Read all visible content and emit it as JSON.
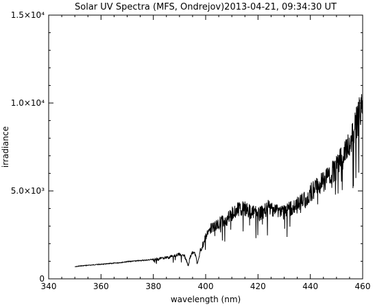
{
  "chart_data": {
    "type": "line",
    "title": "Solar UV Spectra (MFS, Ondrejov)2013-04-21, 09:34:30 UT",
    "xlabel": "wavelength (nm)",
    "ylabel": "irradiance",
    "xlim": [
      340,
      460
    ],
    "ylim": [
      0,
      15000
    ],
    "x_ticks": [
      340,
      360,
      380,
      400,
      420,
      440,
      460
    ],
    "x_tick_labels": [
      "340",
      "360",
      "380",
      "400",
      "420",
      "440",
      "460"
    ],
    "y_ticks": [
      0,
      5000,
      10000,
      15000
    ],
    "y_tick_labels": [
      "0",
      "5.0×10³",
      "1.0×10⁴",
      "1.5×10⁴"
    ],
    "grid": false,
    "series": [
      {
        "x": [
          350,
          352,
          354,
          356,
          358,
          360,
          362,
          364,
          366,
          368,
          370,
          372,
          374,
          376,
          378,
          380,
          382,
          384,
          386,
          388,
          390,
          392,
          393.4,
          394,
          395,
          396,
          396.8,
          398,
          400,
          402,
          404,
          406,
          408,
          410,
          412,
          414,
          416,
          418,
          420,
          422,
          424,
          426,
          428,
          430,
          432,
          434,
          436,
          438,
          440,
          442,
          444,
          446,
          448,
          450,
          452,
          454,
          456,
          458,
          460
        ],
        "y": [
          700,
          750,
          780,
          800,
          830,
          850,
          870,
          900,
          930,
          960,
          1000,
          1030,
          1050,
          1080,
          1100,
          1150,
          1200,
          1250,
          1300,
          1400,
          1500,
          1350,
          800,
          1300,
          1600,
          1500,
          900,
          1800,
          2600,
          3200,
          3400,
          3600,
          3700,
          4100,
          4400,
          4500,
          4300,
          4200,
          4100,
          4200,
          4500,
          4400,
          4300,
          4200,
          4400,
          4600,
          4800,
          5000,
          5400,
          5800,
          6000,
          6300,
          6600,
          7000,
          7600,
          8300,
          9000,
          10000,
          11000
        ]
      }
    ]
  }
}
